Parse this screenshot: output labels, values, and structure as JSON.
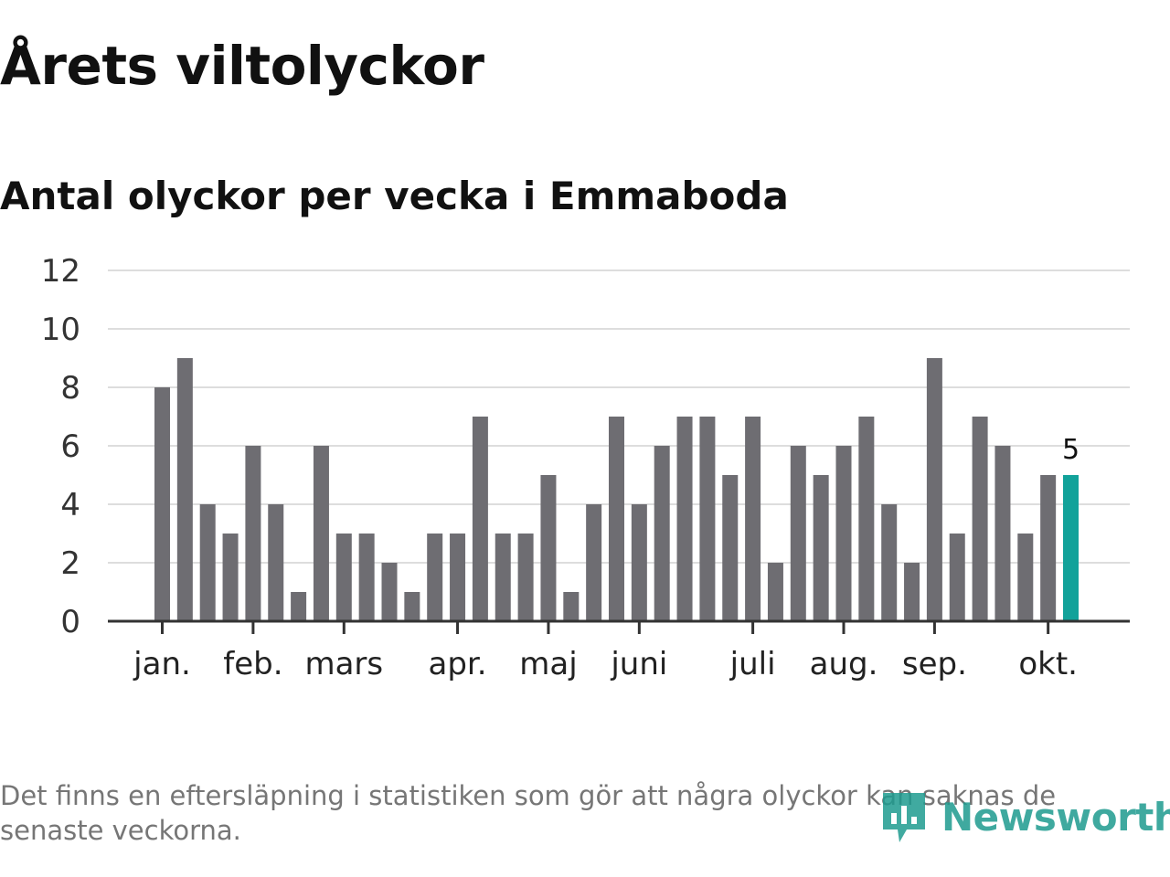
{
  "title": "Årets viltolyckor",
  "subtitle": "Antal olyckor per vecka i Emmaboda",
  "footnote": "Det finns en eftersläpning i statistiken som gör att några olyckor kan saknas de senaste veckorna.",
  "logo_text": "Newsworthy",
  "colors": {
    "bar": "#6e6d72",
    "highlight": "#12a29a",
    "grid": "#dddddd",
    "axis": "#333333"
  },
  "chart_data": {
    "type": "bar",
    "values": [
      8,
      9,
      4,
      3,
      6,
      4,
      1,
      6,
      3,
      3,
      2,
      1,
      3,
      3,
      7,
      3,
      3,
      5,
      1,
      4,
      7,
      4,
      6,
      7,
      7,
      5,
      7,
      2,
      6,
      5,
      6,
      7,
      4,
      2,
      9,
      3,
      7,
      6,
      3,
      5,
      5
    ],
    "highlight_index": 40,
    "data_labels": [
      {
        "index": 40,
        "text": "5"
      }
    ],
    "month_ticks": [
      {
        "label": "jan.",
        "index": 0.5
      },
      {
        "label": "feb.",
        "index": 4.5
      },
      {
        "label": "mars",
        "index": 8.5
      },
      {
        "label": "apr.",
        "index": 13.5
      },
      {
        "label": "maj",
        "index": 17.5
      },
      {
        "label": "juni",
        "index": 21.5
      },
      {
        "label": "juli",
        "index": 26.5
      },
      {
        "label": "aug.",
        "index": 30.5
      },
      {
        "label": "sep.",
        "index": 34.5
      },
      {
        "label": "okt.",
        "index": 39.5
      }
    ],
    "yticks": [
      0,
      2,
      4,
      6,
      8,
      10,
      12
    ],
    "ylim": [
      0,
      12
    ],
    "grid": true
  }
}
